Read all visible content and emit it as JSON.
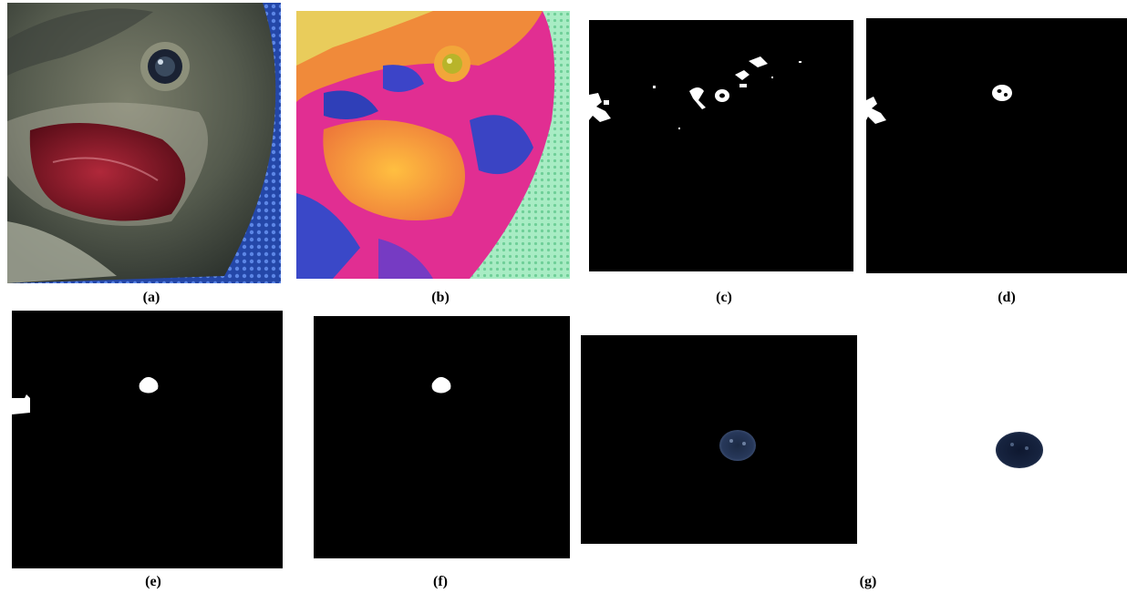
{
  "labels": {
    "a": "(a)",
    "b": "(b)",
    "c": "(c)",
    "d": "(d)",
    "e": "(e)",
    "f": "(f)",
    "g": "(g)"
  },
  "colors": {
    "background": "#ffffff",
    "mask_background": "#000000",
    "mask_foreground": "#ffffff",
    "fish_body": "#5b5f52",
    "gill": "#8a1c2a",
    "mesh": "#2b57c2",
    "pseudo_pink": "#e0309a",
    "pseudo_orange": "#f2a23a",
    "pseudo_green": "#9fe8b8",
    "pseudo_blue": "#3a3fc0",
    "eye_dark": "#101a2c"
  },
  "icons": {
    "panel_a": "fish-head-photo",
    "panel_b": "pseudocolor-image",
    "panel_c": "binary-mask-image",
    "panel_d": "binary-mask-image",
    "panel_e": "binary-mask-image",
    "panel_f": "binary-mask-image",
    "panel_g_left": "segmented-eye-image",
    "panel_g_right": "segmented-eye-image"
  }
}
